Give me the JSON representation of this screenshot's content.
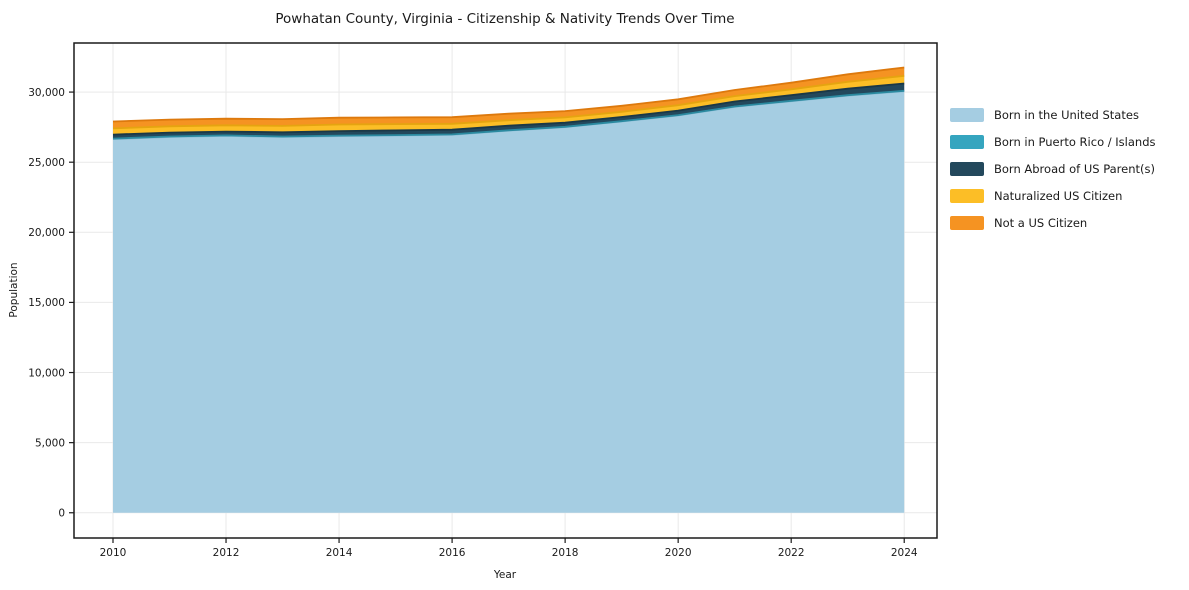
{
  "chart_data": {
    "type": "area",
    "stacked": true,
    "title": "Powhatan County, Virginia - Citizenship & Nativity Trends Over Time",
    "xlabel": "Year",
    "ylabel": "Population",
    "x": [
      2010,
      2011,
      2012,
      2013,
      2014,
      2015,
      2016,
      2017,
      2018,
      2019,
      2020,
      2021,
      2022,
      2023,
      2024
    ],
    "series": [
      {
        "name": "Born in the United States",
        "color": "#a5cde2",
        "edge_color": "#84b9d2",
        "values": [
          26650,
          26800,
          26880,
          26800,
          26860,
          26900,
          26950,
          27250,
          27500,
          27900,
          28330,
          28950,
          29350,
          29750,
          30060
        ]
      },
      {
        "name": "Born in Puerto Rico / Islands",
        "color": "#35a5bf",
        "edge_color": "#2b8aa0",
        "values": [
          30,
          30,
          30,
          30,
          35,
          35,
          30,
          25,
          25,
          25,
          25,
          25,
          30,
          30,
          30
        ]
      },
      {
        "name": "Born Abroad of US Parent(s)",
        "color": "#23485c",
        "edge_color": "#1a3847",
        "values": [
          290,
          280,
          270,
          300,
          320,
          330,
          340,
          330,
          290,
          300,
          325,
          350,
          400,
          460,
          520
        ]
      },
      {
        "name": "Naturalized US Citizen",
        "color": "#fcbe26",
        "edge_color": "#e5a410",
        "values": [
          440,
          450,
          450,
          460,
          470,
          450,
          420,
          390,
          380,
          370,
          385,
          390,
          420,
          490,
          550
        ]
      },
      {
        "name": "Not a US Citizen",
        "color": "#f59322",
        "edge_color": "#dd790d",
        "values": [
          490,
          480,
          470,
          480,
          490,
          480,
          470,
          460,
          450,
          430,
          420,
          430,
          470,
          540,
          590
        ]
      }
    ],
    "xticks": [
      2010,
      2012,
      2014,
      2016,
      2018,
      2020,
      2022,
      2024
    ],
    "xtick_labels": [
      "2010",
      "2012",
      "2014",
      "2016",
      "2018",
      "2020",
      "2022",
      "2024"
    ],
    "yticks": [
      0,
      5000,
      10000,
      15000,
      20000,
      25000,
      30000
    ],
    "ytick_labels": [
      "0",
      "5,000",
      "10,000",
      "15,000",
      "20,000",
      "25,000",
      "30,000"
    ],
    "xlim": [
      2009.31,
      2024.58
    ],
    "ylim": [
      -1800,
      33500
    ],
    "grid": true,
    "grid_color": "#e9e9e9",
    "border_color": "#1a1a1a",
    "text_color": "#1a1a1a",
    "background_color": "#ffffff",
    "legend_position": "right"
  }
}
